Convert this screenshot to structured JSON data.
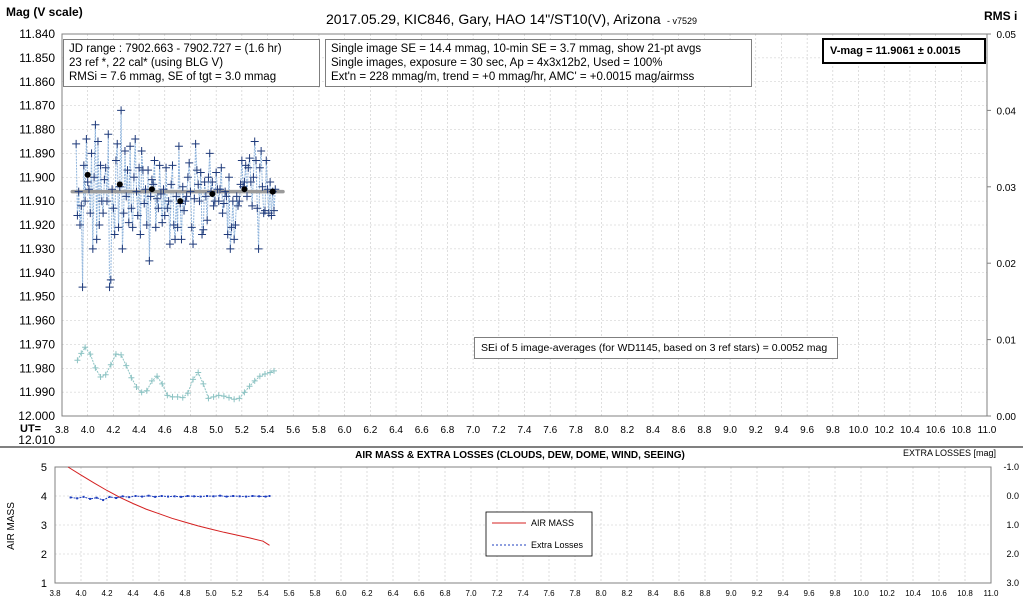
{
  "header": {
    "title": "2017.05.29,  KIC846,  Gary, HAO 14\"/ST10(V), Arizona",
    "version": "- v7529",
    "left_axis_title": "Mag (V scale)",
    "right_axis_title": "RMS i"
  },
  "info_boxes": {
    "left": [
      "JD range : 7902.663 - 7902.727 = (1.6 hr)",
      "23 ref *, 22 cal* (using BLG V)",
      "RMSi = 7.6 mmag, SE of tgt = 3.0 mmag"
    ],
    "center": [
      "Single image SE = 14.4 mmag, 10-min SE = 3.7 mmag, show 21-pt avgs",
      "Single images, exposure = 30  sec, Ap = 4x3x12b2, Used = 100%",
      "Ext'n = 228 mmag/m, trend = +0 mmag/hr, AMC' = +0.0015 mag/airmss"
    ],
    "vmag": "V-mag = 11.9061 ± 0.0015",
    "sei": "SEi of 5 image-averages (for WD1145, based on 3 ref stars) = 0.0052 mag"
  },
  "colors": {
    "mag_points": "#1f3a7a",
    "mag_line": "#8fb4dc",
    "averages": "#000000",
    "fit_line": "#9a9a9a",
    "rms": "#8ec4c4",
    "airmass": "#d42020",
    "extra_losses": "#1f3fbf",
    "grid": "#c8c8c8"
  },
  "chart_data": [
    {
      "type": "scatter",
      "title": "2017.05.29,  KIC846,  Gary, HAO 14\"/ST10(V), Arizona",
      "xlabel": "UT=",
      "ylabel": "Mag (V scale)",
      "y2label": "RMS i",
      "xlim": [
        3.8,
        11.0
      ],
      "ylim": [
        11.84,
        12.0
      ],
      "y_inverted": true,
      "y2lim": [
        0.0,
        0.05
      ],
      "grid": true,
      "x_ticks": [
        "3.8",
        "4.0",
        "4.2",
        "4.4",
        "4.6",
        "4.8",
        "5.0",
        "5.2",
        "5.4",
        "5.6",
        "5.8",
        "6.0",
        "6.2",
        "6.4",
        "6.6",
        "6.8",
        "7.0",
        "7.2",
        "7.4",
        "7.6",
        "7.8",
        "8.0",
        "8.2",
        "8.4",
        "8.6",
        "8.8",
        "9.0",
        "9.2",
        "9.4",
        "9.6",
        "9.8",
        "10.0",
        "10.2",
        "10.4",
        "10.6",
        "10.8",
        "11.0"
      ],
      "y_ticks": [
        "11.840",
        "11.850",
        "11.860",
        "11.870",
        "11.880",
        "11.890",
        "11.900",
        "11.910",
        "11.920",
        "11.930",
        "11.940",
        "11.950",
        "11.960",
        "11.970",
        "11.980",
        "11.990",
        "12.000",
        "12.010"
      ],
      "y2_ticks": [
        "0.00",
        "0.01",
        "0.02",
        "0.03",
        "0.04",
        "0.05"
      ],
      "fit_line": {
        "x": [
          3.88,
          5.52
        ],
        "y": [
          11.906,
          11.906
        ]
      },
      "series": [
        {
          "marker": "plus",
          "x": [
            3.91,
            3.92,
            3.93,
            3.94,
            3.95,
            3.96,
            3.97,
            3.98,
            3.99,
            4.0,
            4.01,
            4.02,
            4.03,
            4.04,
            4.05,
            4.06,
            4.07,
            4.08,
            4.09,
            4.1,
            4.11,
            4.12,
            4.13,
            4.14,
            4.15,
            4.16,
            4.17,
            4.18,
            4.19,
            4.2,
            4.21,
            4.22,
            4.23,
            4.24,
            4.25,
            4.26,
            4.27,
            4.28,
            4.29,
            4.3,
            4.31,
            4.32,
            4.33,
            4.34,
            4.35,
            4.36,
            4.37,
            4.38,
            4.39,
            4.4,
            4.41,
            4.42,
            4.43,
            4.44,
            4.45,
            4.46,
            4.47,
            4.48,
            4.49,
            4.5,
            4.51,
            4.52,
            4.53,
            4.54,
            4.55,
            4.56,
            4.57,
            4.58,
            4.59,
            4.6,
            4.61,
            4.62,
            4.63,
            4.64,
            4.65,
            4.66,
            4.67,
            4.68,
            4.69,
            4.7,
            4.71,
            4.72,
            4.73,
            4.74,
            4.75,
            4.76,
            4.77,
            4.78,
            4.79,
            4.8,
            4.81,
            4.82,
            4.83,
            4.84,
            4.85,
            4.86,
            4.87,
            4.88,
            4.89,
            4.9,
            4.91,
            4.92,
            4.93,
            4.94,
            4.95,
            4.96,
            4.97,
            4.98,
            4.99,
            5.0,
            5.01,
            5.02,
            5.03,
            5.04,
            5.05,
            5.06,
            5.07,
            5.08,
            5.09,
            5.1,
            5.11,
            5.12,
            5.13,
            5.14,
            5.15,
            5.16,
            5.17,
            5.18,
            5.19,
            5.2,
            5.21,
            5.22,
            5.23,
            5.24,
            5.25,
            5.26,
            5.27,
            5.28,
            5.29,
            5.3,
            5.31,
            5.32,
            5.33,
            5.34,
            5.35,
            5.36,
            5.37,
            5.38,
            5.39,
            5.4,
            5.41,
            5.42,
            5.43,
            5.44,
            5.45,
            5.46
          ],
          "values": [
            11.886,
            11.916,
            11.906,
            11.92,
            11.912,
            11.946,
            11.895,
            11.91,
            11.884,
            11.902,
            11.905,
            11.915,
            11.89,
            11.93,
            11.9,
            11.878,
            11.926,
            11.885,
            11.92,
            11.895,
            11.91,
            11.915,
            11.901,
            11.896,
            11.91,
            11.882,
            11.946,
            11.943,
            11.905,
            11.913,
            11.924,
            11.893,
            11.886,
            11.921,
            11.904,
            11.872,
            11.93,
            11.915,
            11.889,
            11.908,
            11.897,
            11.919,
            11.887,
            11.913,
            11.921,
            11.9,
            11.884,
            11.906,
            11.916,
            11.896,
            11.924,
            11.889,
            11.897,
            11.911,
            11.905,
            11.92,
            11.897,
            11.935,
            11.908,
            11.901,
            11.903,
            11.893,
            11.921,
            11.909,
            11.913,
            11.895,
            11.907,
            11.919,
            11.905,
            11.916,
            11.896,
            11.913,
            11.91,
            11.928,
            11.903,
            11.895,
            11.92,
            11.926,
            11.908,
            11.921,
            11.887,
            11.911,
            11.926,
            11.904,
            11.914,
            11.91,
            11.908,
            11.9,
            11.894,
            11.906,
            11.921,
            11.928,
            11.909,
            11.886,
            11.897,
            11.903,
            11.91,
            11.898,
            11.924,
            11.922,
            11.902,
            11.908,
            11.918,
            11.9,
            11.89,
            11.906,
            11.902,
            11.912,
            11.91,
            11.898,
            11.905,
            11.91,
            11.905,
            11.896,
            11.915,
            11.911,
            11.906,
            11.908,
            11.924,
            11.9,
            11.93,
            11.921,
            11.91,
            11.926,
            11.92,
            11.908,
            11.912,
            11.91,
            11.903,
            11.893,
            11.904,
            11.902,
            11.895,
            11.908,
            11.896,
            11.892,
            11.902,
            11.912,
            11.9,
            11.885,
            11.893,
            11.913,
            11.93,
            11.896,
            11.889,
            11.904,
            11.915,
            11.914,
            11.893,
            11.905,
            11.915,
            11.902,
            11.916,
            11.906,
            11.914,
            11.905
          ]
        },
        {
          "name": "21-pt avgs",
          "marker": "dot",
          "x": [
            4.0,
            4.25,
            4.5,
            4.72,
            4.97,
            5.22,
            5.44
          ],
          "values": [
            11.899,
            11.903,
            11.905,
            11.91,
            11.907,
            11.905,
            11.906
          ]
        },
        {
          "name": "RMS i",
          "axis": "right",
          "marker": "plus",
          "x": [
            3.92,
            3.95,
            3.98,
            4.02,
            4.06,
            4.1,
            4.14,
            4.18,
            4.22,
            4.26,
            4.3,
            4.34,
            4.38,
            4.42,
            4.46,
            4.5,
            4.54,
            4.58,
            4.62,
            4.66,
            4.7,
            4.74,
            4.78,
            4.82,
            4.86,
            4.9,
            4.94,
            4.98,
            5.02,
            5.06,
            5.1,
            5.14,
            5.18,
            5.22,
            5.26,
            5.3,
            5.34,
            5.38,
            5.42,
            5.45
          ],
          "values": [
            0.0073,
            0.0082,
            0.009,
            0.0081,
            0.0063,
            0.0051,
            0.0054,
            0.0067,
            0.0081,
            0.008,
            0.0066,
            0.005,
            0.0038,
            0.0031,
            0.0033,
            0.0046,
            0.0052,
            0.0042,
            0.0027,
            0.0025,
            0.0025,
            0.0024,
            0.003,
            0.0048,
            0.0057,
            0.0042,
            0.0023,
            0.0025,
            0.0027,
            0.0026,
            0.0024,
            0.0022,
            0.0023,
            0.0031,
            0.0039,
            0.0046,
            0.0052,
            0.0055,
            0.0057,
            0.0059
          ]
        }
      ]
    },
    {
      "type": "line",
      "title": "AIR MASS & EXTRA LOSSES (CLOUDS, DEW, DOME, WIND, SEEING)",
      "ylabel": "AIR MASS",
      "y2label": "EXTRA LOSSES [mag]",
      "xlim": [
        3.8,
        11.0
      ],
      "ylim": [
        1,
        5
      ],
      "y2lim": [
        -1.0,
        3.0
      ],
      "y2_inverted": true,
      "grid": true,
      "legend": "center",
      "x_ticks": [
        "3.8",
        "4.0",
        "4.2",
        "4.4",
        "4.6",
        "4.8",
        "5.0",
        "5.2",
        "5.4",
        "5.6",
        "5.8",
        "6.0",
        "6.2",
        "6.4",
        "6.6",
        "6.8",
        "7.0",
        "7.2",
        "7.4",
        "7.6",
        "7.8",
        "8.0",
        "8.2",
        "8.4",
        "8.6",
        "8.8",
        "9.0",
        "9.2",
        "9.4",
        "9.6",
        "9.8",
        "10.0",
        "10.2",
        "10.4",
        "10.6",
        "10.8",
        "11.0"
      ],
      "y_ticks": [
        "1",
        "2",
        "3",
        "4",
        "5"
      ],
      "y2_ticks": [
        "-1.0",
        "0.0",
        "1.0",
        "2.0",
        "3.0"
      ],
      "series": [
        {
          "name": "AIR MASS",
          "axis": "left",
          "x": [
            3.9,
            4.0,
            4.1,
            4.2,
            4.3,
            4.4,
            4.5,
            4.6,
            4.7,
            4.8,
            4.9,
            5.0,
            5.1,
            5.2,
            5.3,
            5.4,
            5.45
          ],
          "values": [
            5.0,
            4.72,
            4.45,
            4.19,
            3.95,
            3.74,
            3.55,
            3.39,
            3.23,
            3.1,
            2.97,
            2.86,
            2.75,
            2.65,
            2.55,
            2.44,
            2.3
          ]
        },
        {
          "name": "Extra Losses",
          "axis": "right",
          "x": [
            3.92,
            3.97,
            4.02,
            4.07,
            4.12,
            4.17,
            4.22,
            4.27,
            4.32,
            4.37,
            4.42,
            4.47,
            4.52,
            4.57,
            4.62,
            4.67,
            4.72,
            4.77,
            4.82,
            4.87,
            4.92,
            4.97,
            5.02,
            5.07,
            5.12,
            5.17,
            5.22,
            5.27,
            5.32,
            5.37,
            5.42,
            5.45
          ],
          "values": [
            0.05,
            0.08,
            0.03,
            0.1,
            0.06,
            0.14,
            0.03,
            0.07,
            0.01,
            0.04,
            0.0,
            0.02,
            -0.01,
            0.03,
            0.0,
            0.02,
            0.01,
            0.03,
            0.0,
            0.01,
            0.02,
            0.0,
            0.01,
            -0.01,
            0.02,
            0.0,
            0.01,
            0.02,
            0.0,
            0.01,
            0.02,
            0.0
          ]
        }
      ]
    }
  ]
}
